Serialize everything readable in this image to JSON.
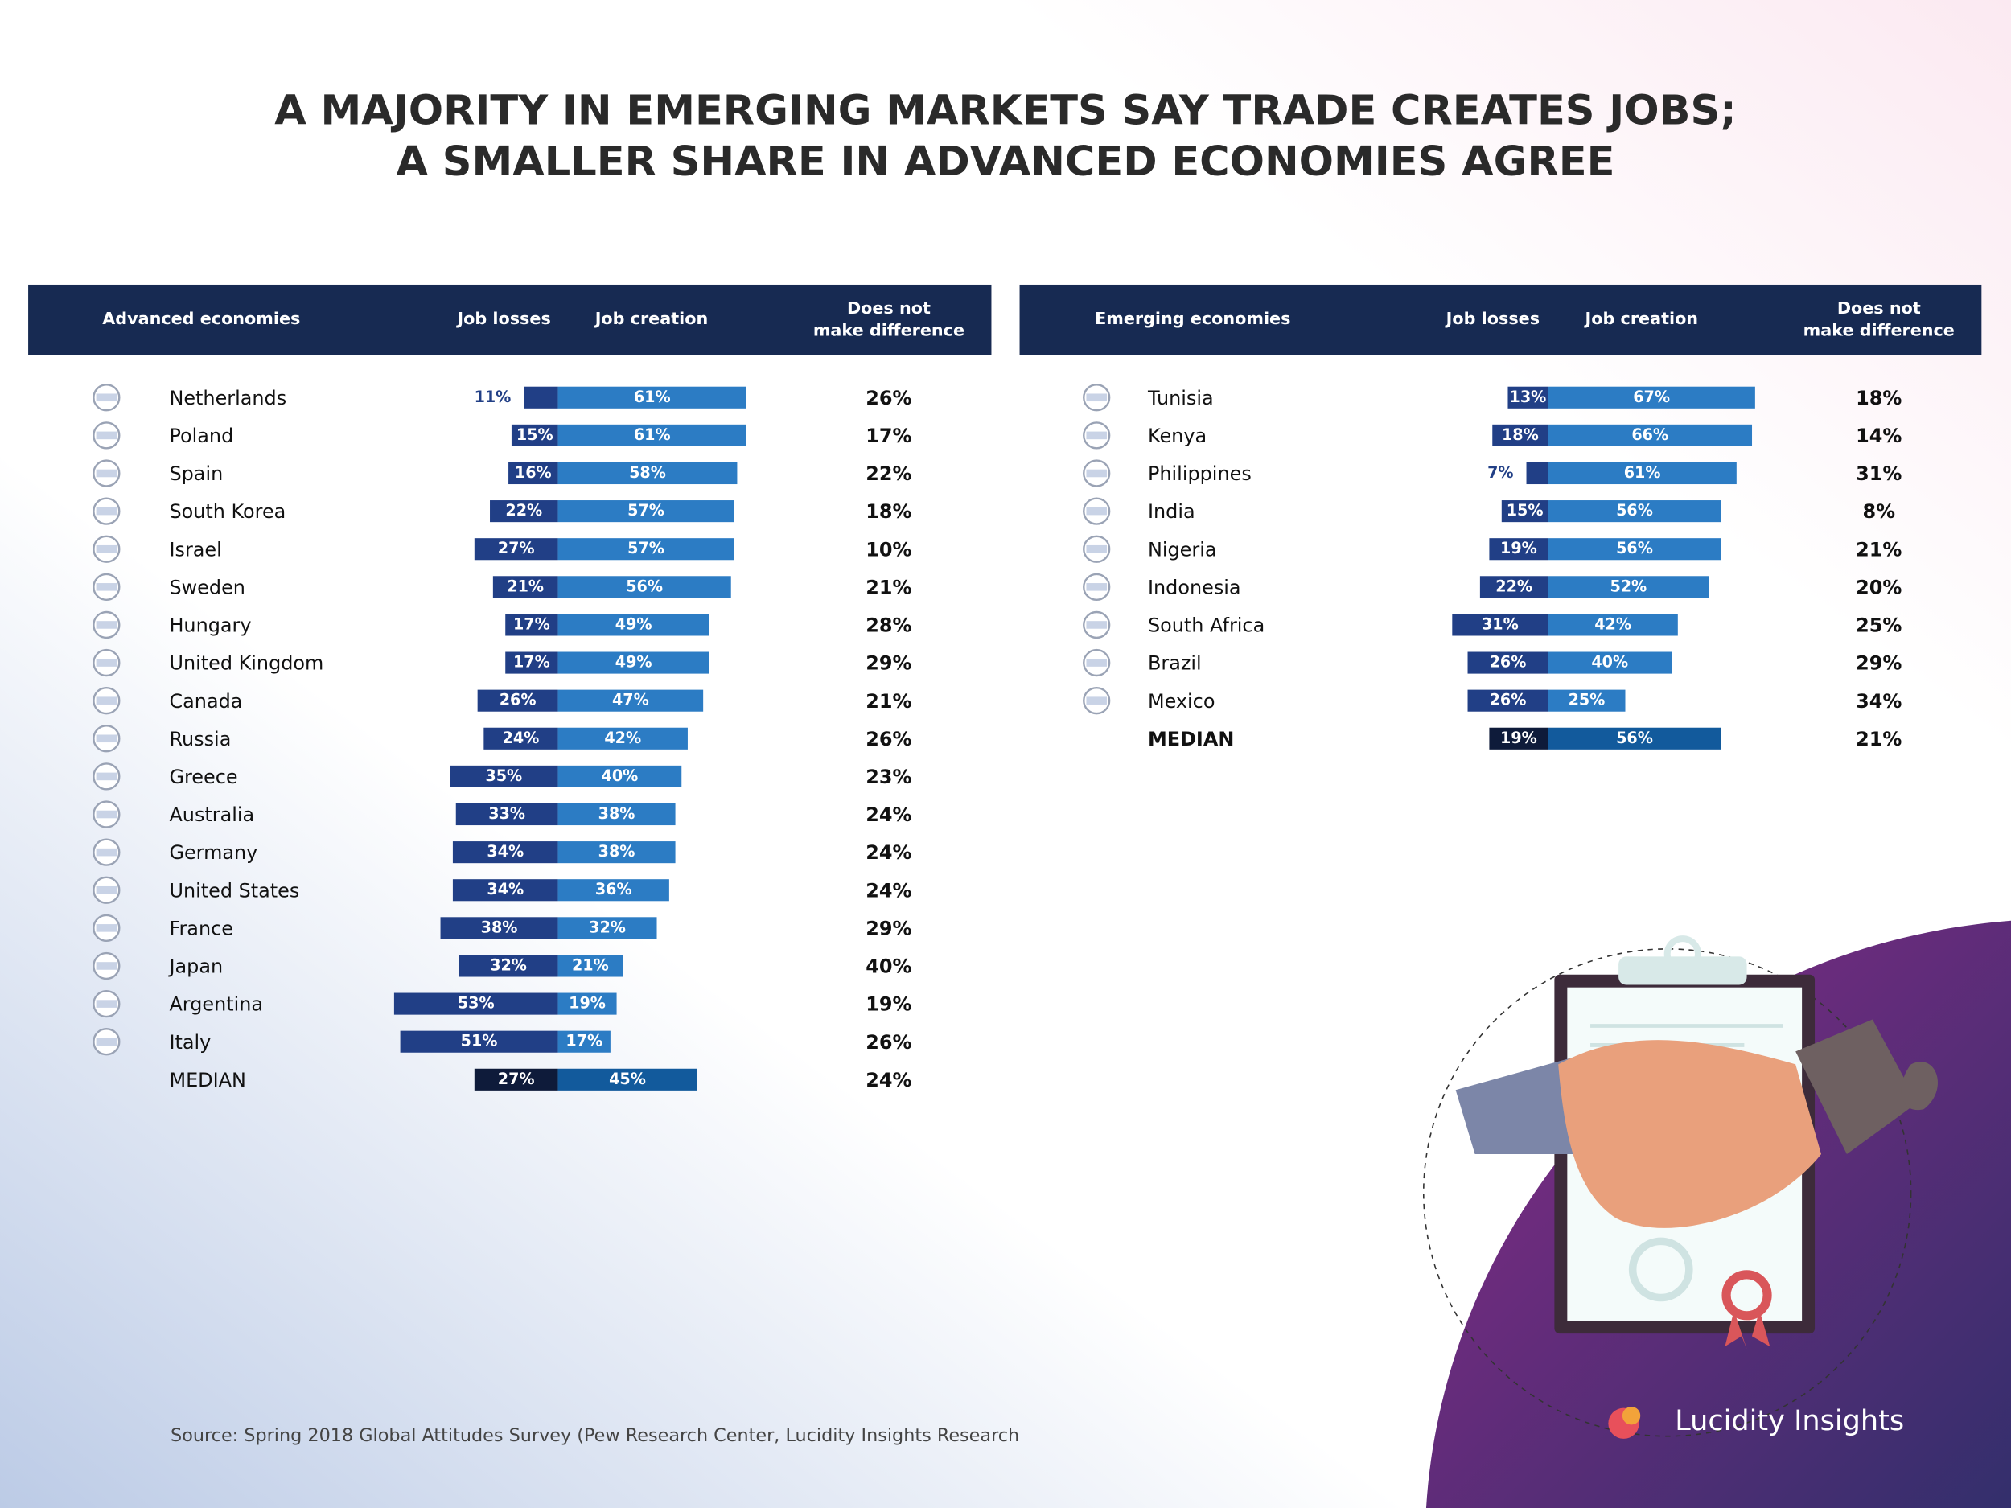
{
  "title": [
    "A MAJORITY IN EMERGING MARKETS SAY TRADE CREATES JOBS;",
    "A SMALLER SHARE IN ADVANCED ECONOMIES AGREE"
  ],
  "source": "Source: Spring 2018 Global Attitudes Survey (Pew Research Center, Lucidity Insights Research",
  "brand": "Lucidity Insights",
  "chart_data": [
    {
      "type": "diverging_bar",
      "group_label": "Advanced economies",
      "categories": [
        "Netherlands",
        "Poland",
        "Spain",
        "South Korea",
        "Israel",
        "Sweden",
        "Hungary",
        "United Kingdom",
        "Canada",
        "Russia",
        "Greece",
        "Australia",
        "Germany",
        "United States",
        "France",
        "Japan",
        "Argentina",
        "Italy",
        "MEDIAN"
      ],
      "series": [
        {
          "name": "Job losses",
          "color": "#213f86",
          "median_color": "#0e1b3a",
          "values": [
            11,
            15,
            16,
            22,
            27,
            21,
            17,
            17,
            26,
            24,
            35,
            33,
            34,
            34,
            38,
            32,
            53,
            51,
            27
          ],
          "value_labels": [
            "11%",
            "15%",
            "16%",
            "22%",
            "27%",
            "21%",
            "17%",
            "17%",
            "26%",
            "24%",
            "35%",
            "33%",
            "34%",
            "34%",
            "38%",
            "32%",
            "53%",
            "51%",
            "27%"
          ]
        },
        {
          "name": "Job creation",
          "color": "#2c7cc4",
          "median_color": "#125a9c",
          "values": [
            61,
            61,
            58,
            57,
            57,
            56,
            49,
            49,
            47,
            42,
            40,
            38,
            38,
            36,
            32,
            21,
            19,
            17,
            45
          ],
          "value_labels": [
            "61%",
            "61%",
            "58%",
            "57%",
            "57%",
            "56%",
            "49%",
            "49%",
            "47%",
            "42%",
            "40%",
            "38%",
            "38%",
            "36%",
            "32%",
            "21%",
            "19%",
            "17%",
            "45%"
          ]
        },
        {
          "name": "Does not make difference",
          "values": [
            26,
            17,
            22,
            18,
            10,
            21,
            28,
            29,
            21,
            26,
            23,
            24,
            24,
            24,
            29,
            40,
            19,
            26,
            24
          ],
          "value_labels": [
            "26%",
            "17%",
            "22%",
            "18%",
            "10%",
            "21%",
            "28%",
            "29%",
            "21%",
            "26%",
            "23%",
            "24%",
            "24%",
            "24%",
            "29%",
            "40%",
            "19%",
            "26%",
            "24%"
          ]
        }
      ]
    },
    {
      "type": "diverging_bar",
      "group_label": "Emerging economies",
      "categories": [
        "Tunisia",
        "Kenya",
        "Philippines",
        "India",
        "Nigeria",
        "Indonesia",
        "South Africa",
        "Brazil",
        "Mexico",
        "MEDIAN"
      ],
      "series": [
        {
          "name": "Job losses",
          "color": "#213f86",
          "median_color": "#0e1b3a",
          "values": [
            13,
            18,
            7,
            15,
            19,
            22,
            31,
            26,
            26,
            19
          ],
          "value_labels": [
            "13%",
            "18%",
            "7%",
            "15%",
            "19%",
            "22%",
            "31%",
            "26%",
            "26%",
            "19%"
          ]
        },
        {
          "name": "Job creation",
          "color": "#2c7cc4",
          "median_color": "#125a9c",
          "values": [
            67,
            66,
            61,
            56,
            56,
            52,
            42,
            40,
            25,
            56
          ],
          "value_labels": [
            "67%",
            "66%",
            "61%",
            "56%",
            "56%",
            "52%",
            "42%",
            "40%",
            "25%",
            "56%"
          ]
        },
        {
          "name": "Does not make difference",
          "values": [
            18,
            14,
            31,
            8,
            21,
            20,
            25,
            29,
            34,
            21
          ],
          "value_labels": [
            "18%",
            "14%",
            "31%",
            "8%",
            "21%",
            "20%",
            "25%",
            "29%",
            "34%",
            "21%"
          ]
        }
      ]
    }
  ]
}
